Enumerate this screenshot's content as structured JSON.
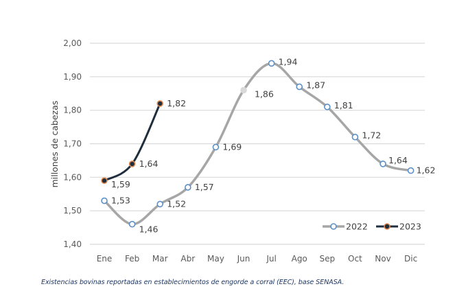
{
  "chart_data": {
    "type": "line",
    "title": "",
    "xlabel": "",
    "ylabel": "millones de cabezas",
    "categories": [
      "Ene",
      "Feb",
      "Mar",
      "Abr",
      "May",
      "Jun",
      "Jul",
      "Ago",
      "Sep",
      "Oct",
      "Nov",
      "Dic"
    ],
    "ylim": [
      1.4,
      2.0
    ],
    "yticks": [
      1.4,
      1.5,
      1.6,
      1.7,
      1.8,
      1.9,
      2.0
    ],
    "ytick_labels": [
      "1,40",
      "1,50",
      "1,60",
      "1,70",
      "1,80",
      "1,90",
      "2,00"
    ],
    "grid": true,
    "legend_position": "bottom-right",
    "series": [
      {
        "name": "2022",
        "color": "#a6a6a6",
        "marker_color": "#5b8fc7",
        "values": [
          1.53,
          1.46,
          1.52,
          1.57,
          1.69,
          1.86,
          1.94,
          1.87,
          1.81,
          1.72,
          1.64,
          1.62
        ],
        "labels": [
          "1,53",
          "1,46",
          "1,52",
          "1,57",
          "1,69",
          "1,86",
          "1,94",
          "1,87",
          "1,81",
          "1,72",
          "1,64",
          "1,62"
        ]
      },
      {
        "name": "2023",
        "color": "#1f2d3d",
        "marker_color": "#e08a4f",
        "values": [
          1.59,
          1.64,
          1.82
        ],
        "labels": [
          "1,59",
          "1,64",
          "1,82"
        ]
      }
    ]
  },
  "caption": "Existencias bovinas reportadas en establecimientos de engorde a corral (EEC), base SENASA."
}
